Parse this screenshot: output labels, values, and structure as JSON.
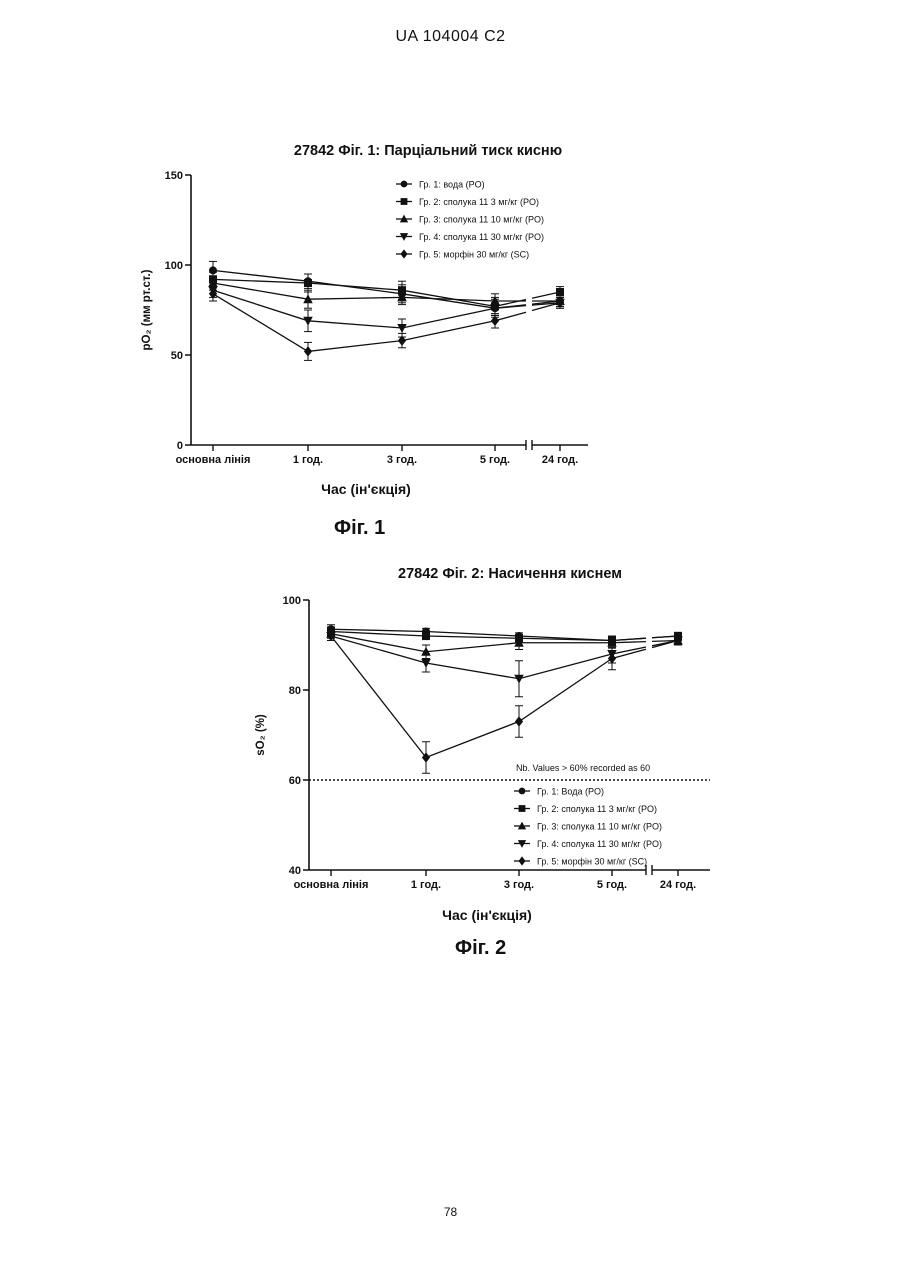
{
  "page": {
    "header": "UA   104004   C2",
    "page_number": "78"
  },
  "figures": [
    {
      "caption": "Фіг. 1"
    },
    {
      "caption": "Фіг. 2"
    }
  ],
  "chart_data": [
    {
      "type": "line",
      "title": "27842 Фіг. 1: Парціальний тиск кисню",
      "ylabel": "pO₂ (мм рт.ст.)",
      "xlabel": "Час (ін'єкція)",
      "categories": [
        "основна лінія",
        "1 год.",
        "3 год.",
        "5 год.",
        "24 год."
      ],
      "yticks": [
        "0",
        "50",
        "100",
        "150"
      ],
      "ylim": [
        0,
        150
      ],
      "axis_break": "between 5 год. and 24 год.",
      "legend_position": "top-right",
      "series": [
        {
          "name": "Гр. 1:  вода  (PO)",
          "marker": "circle",
          "values": [
            97,
            91,
            84,
            76,
            80
          ],
          "errors": [
            5,
            4,
            5,
            4,
            3
          ]
        },
        {
          "name": "Гр. 2: сполука 11 3 мг/кг (PO)",
          "marker": "square",
          "values": [
            92,
            90,
            86,
            77,
            85
          ],
          "errors": [
            4,
            5,
            5,
            5,
            3
          ]
        },
        {
          "name": "Гр. 3: сполука 11 10 мг/кг (PO)",
          "marker": "triangle-up",
          "values": [
            90,
            81,
            82,
            80,
            80
          ],
          "errors": [
            4,
            5,
            4,
            4,
            3
          ]
        },
        {
          "name": "Гр. 4: сполука 11 30 мг/кг (PO)",
          "marker": "triangle-down",
          "values": [
            86,
            69,
            65,
            76,
            79
          ],
          "errors": [
            4,
            6,
            5,
            5,
            3
          ]
        },
        {
          "name": "Гр. 5:  морфін 30 мг/кг (SC)",
          "marker": "diamond",
          "values": [
            84,
            52,
            58,
            69,
            79
          ],
          "errors": [
            4,
            5,
            4,
            4,
            3
          ]
        }
      ]
    },
    {
      "type": "line",
      "title": "27842 Фіг. 2: Насичення киснем",
      "ylabel": "sO₂ (%)",
      "xlabel": "Час (ін'єкція)",
      "categories": [
        "основна лінія",
        "1 год.",
        "3 год.",
        "5 год.",
        "24 год."
      ],
      "yticks": [
        "40",
        "60",
        "80",
        "100"
      ],
      "ylim": [
        40,
        100
      ],
      "axis_break": "between 5 год. and 24 год.",
      "annotation": "Nb. Values > 60% recorded as 60",
      "reference_line": 60,
      "legend_position": "bottom-right",
      "series": [
        {
          "name": "Гр. 1: Вода (PO)",
          "marker": "circle",
          "values": [
            93.5,
            93,
            92,
            91,
            92
          ],
          "errors": [
            1,
            0.7,
            0.7,
            1,
            0.8
          ]
        },
        {
          "name": "Гр. 2: сполука 11 3 мг/кг (PO)",
          "marker": "square",
          "values": [
            93,
            92,
            91.5,
            91,
            92
          ],
          "errors": [
            1,
            0.8,
            0.8,
            1,
            0.8
          ]
        },
        {
          "name": "Гр. 3: сполука 11 10 мг/кг (PO)",
          "marker": "triangle-up",
          "values": [
            92.5,
            88.5,
            90.5,
            90.5,
            91
          ],
          "errors": [
            1,
            1.5,
            1.5,
            1.2,
            1
          ]
        },
        {
          "name": "Гр. 4: сполука 11 30 мг/кг (PO)",
          "marker": "triangle-down",
          "values": [
            92,
            86,
            82.5,
            88,
            91
          ],
          "errors": [
            1,
            2,
            4,
            2,
            1
          ]
        },
        {
          "name": "Гр. 5: морфін 30 мг/кг (SC)",
          "marker": "diamond",
          "values": [
            92,
            65,
            73,
            87,
            91
          ],
          "errors": [
            1,
            3.5,
            3.5,
            2.5,
            1
          ]
        }
      ]
    }
  ]
}
